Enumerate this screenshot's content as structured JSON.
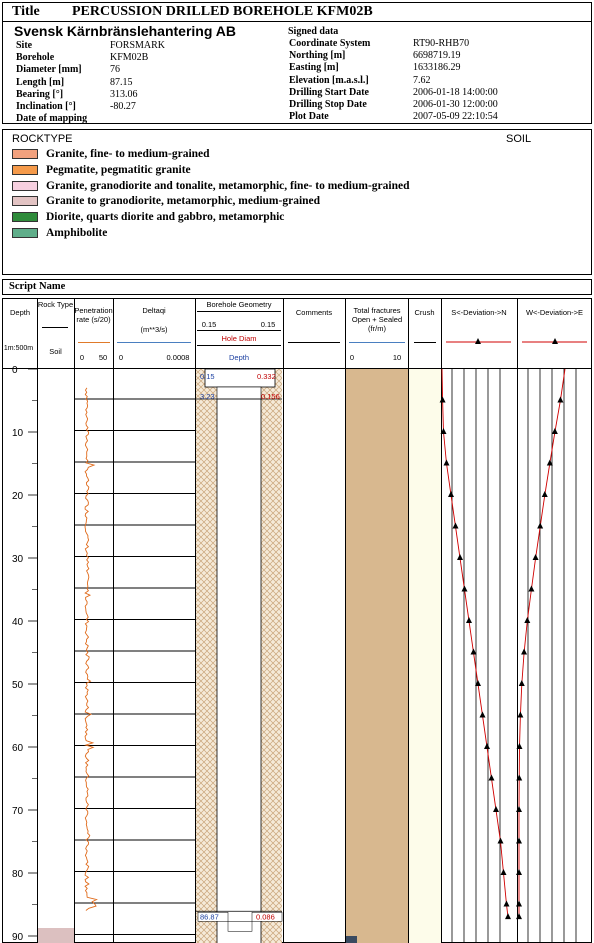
{
  "header": {
    "title_label": "Title",
    "title": "PERCUSSION DRILLED BOREHOLE KFM02B",
    "company": "Svensk Kärnbränslehantering AB",
    "left_fields": [
      {
        "label": "Site",
        "value": "FORSMARK"
      },
      {
        "label": "Borehole",
        "value": "KFM02B"
      },
      {
        "label": "Diameter [mm]",
        "value": "76"
      },
      {
        "label": "Length [m]",
        "value": "87.15"
      },
      {
        "label": "Bearing [°]",
        "value": "313.06"
      },
      {
        "label": "Inclination [°]",
        "value": "-80.27"
      },
      {
        "label": "Date of mapping",
        "value": ""
      }
    ],
    "signed": "Signed data",
    "right_fields": [
      {
        "label": "Coordinate System",
        "value": "RT90-RHB70"
      },
      {
        "label": "Northing [m]",
        "value": "6698719.19"
      },
      {
        "label": "Easting [m]",
        "value": "1633186.29"
      },
      {
        "label": "Elevation [m.a.s.l.]",
        "value": "7.62"
      },
      {
        "label": "Drilling Start Date",
        "value": "2006-01-18 14:00:00"
      },
      {
        "label": "Drilling Stop Date",
        "value": "2006-01-30 12:00:00"
      },
      {
        "label": "Plot Date",
        "value": "2007-05-09 22:10:54"
      }
    ]
  },
  "legend": {
    "title": "ROCKTYPE",
    "soil": "SOIL",
    "items": [
      {
        "label": "Granite, fine- to medium-grained",
        "color": "#f2a17e"
      },
      {
        "label": "Pegmatite, pegmatitic granite",
        "color": "#f59a4a"
      },
      {
        "label": "Granite, granodiorite and tonalite, metamorphic, fine- to medium-grained",
        "color": "#f7d0e0"
      },
      {
        "label": "Granite to granodiorite, metamorphic, medium-grained",
        "color": "#e2c3c3"
      },
      {
        "label": "Diorite, quarts diorite and gabbro, metamorphic",
        "color": "#2e8b3a"
      },
      {
        "label": "Amphibolite",
        "color": "#5fae8a"
      }
    ]
  },
  "script_name": "Script Name",
  "columns": {
    "depth": "Depth",
    "scale": "1m:500m",
    "rock_type": "Rock Type",
    "soil": "Soil",
    "penetration": "Penetration rate (s/20)",
    "pen_min": "0",
    "pen_max": "50",
    "deltaq": "Deltaqi",
    "deltaq_unit": "(m**3/s)",
    "dq_min": "0",
    "dq_max": "0.0008",
    "geometry": "Borehole Geometry",
    "geo_left": "0.15",
    "geo_right": "0.15",
    "hole_diam": "Hole Diam",
    "geo_depth": "Depth",
    "comments": "Comments",
    "fractures": "Total fractures Open + Sealed (fr/m)",
    "fr_min": "0",
    "fr_max": "10",
    "crush": "Crush",
    "dev_sn": "S<-Deviation->N",
    "dev_we": "W<-Deviation->E"
  },
  "depth_ticks": [
    "0",
    "10",
    "20",
    "30",
    "40",
    "50",
    "60",
    "70",
    "80",
    "90"
  ],
  "geometry_labels": {
    "top_depth": "0.15",
    "top_diam": "0.332",
    "casing_depth": "3.23",
    "casing_diam": "0.156",
    "bottom_depth": "86.87",
    "bottom_diam": "0.086"
  },
  "chart_data": {
    "type": "line",
    "depth_range": [
      0,
      90
    ],
    "penetration_rate": {
      "xlim": [
        0,
        50
      ],
      "depth_start": 3,
      "depth_end": 86,
      "typical": 14
    },
    "deviation_sn": [
      [
        0,
        0.0
      ],
      [
        5,
        0.2
      ],
      [
        10,
        0.5
      ],
      [
        15,
        1.5
      ],
      [
        20,
        3
      ],
      [
        25,
        4.5
      ],
      [
        30,
        6
      ],
      [
        35,
        7.5
      ],
      [
        40,
        9
      ],
      [
        45,
        10.5
      ],
      [
        50,
        12
      ],
      [
        55,
        13.5
      ],
      [
        60,
        15
      ],
      [
        65,
        16.5
      ],
      [
        70,
        18
      ],
      [
        75,
        19.5
      ],
      [
        80,
        20.5
      ],
      [
        85,
        21.5
      ],
      [
        87,
        22
      ]
    ],
    "deviation_we": [
      [
        0,
        10
      ],
      [
        5,
        9
      ],
      [
        10,
        7.8
      ],
      [
        15,
        6.7
      ],
      [
        20,
        5.6
      ],
      [
        25,
        4.6
      ],
      [
        30,
        3.6
      ],
      [
        35,
        2.7
      ],
      [
        40,
        1.8
      ],
      [
        45,
        1.1
      ],
      [
        50,
        0.6
      ],
      [
        55,
        0.3
      ],
      [
        60,
        0.1
      ],
      [
        65,
        0.05
      ],
      [
        70,
        0
      ],
      [
        75,
        0
      ],
      [
        80,
        0
      ],
      [
        85,
        0
      ],
      [
        87,
        0
      ]
    ]
  }
}
